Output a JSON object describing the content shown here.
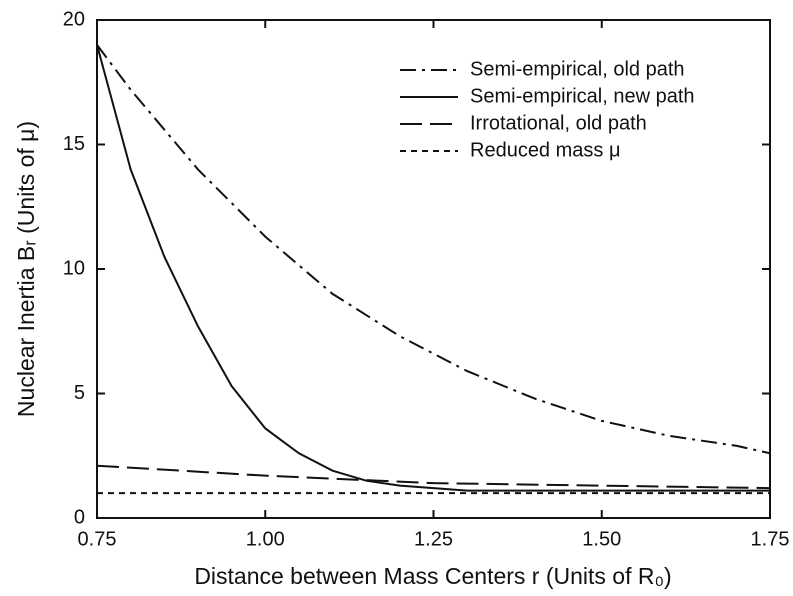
{
  "chart_data": {
    "type": "line",
    "x_label": "Distance between Mass Centers r (Units of R₀)",
    "y_label": "Nuclear Inertia Bᵣ (Units of μ)",
    "xlim": [
      0.75,
      1.75
    ],
    "xticks": [
      0.75,
      {
        "value": 1.0,
        "label": "1.00"
      },
      1.25,
      {
        "value": 1.5,
        "label": "1.50"
      },
      1.75
    ],
    "ylim": [
      0,
      20
    ],
    "yticks": [
      0,
      5,
      10,
      15,
      20
    ],
    "legend": "upper right",
    "series": [
      {
        "name": "Semi-empirical, old path",
        "color": "#111111",
        "dash": "dashdot",
        "x": [
          0.75,
          0.8,
          0.9,
          1.0,
          1.1,
          1.2,
          1.3,
          1.4,
          1.5,
          1.6,
          1.7,
          1.75
        ],
        "values": [
          19,
          17.2,
          14,
          11.3,
          9.0,
          7.3,
          5.9,
          4.8,
          3.9,
          3.3,
          2.9,
          2.6
        ]
      },
      {
        "name": "Semi-empirical, new path",
        "color": "#111111",
        "dash": "solid",
        "x": [
          0.75,
          0.8,
          0.85,
          0.9,
          0.95,
          1.0,
          1.05,
          1.1,
          1.15,
          1.2,
          1.3,
          1.5,
          1.75
        ],
        "values": [
          19,
          14,
          10.5,
          7.7,
          5.3,
          3.6,
          2.6,
          1.9,
          1.5,
          1.3,
          1.1,
          1.1,
          1.1
        ]
      },
      {
        "name": "Irrotational, old path",
        "color": "#111111",
        "dash": "longdash",
        "x": [
          0.75,
          1.0,
          1.25,
          1.5,
          1.75
        ],
        "values": [
          2.1,
          1.7,
          1.4,
          1.3,
          1.2
        ]
      },
      {
        "name": "Reduced mass μ",
        "color": "#111111",
        "dash": "shortdash",
        "x": [
          0.75,
          1.75
        ],
        "values": [
          1,
          1
        ]
      }
    ]
  }
}
